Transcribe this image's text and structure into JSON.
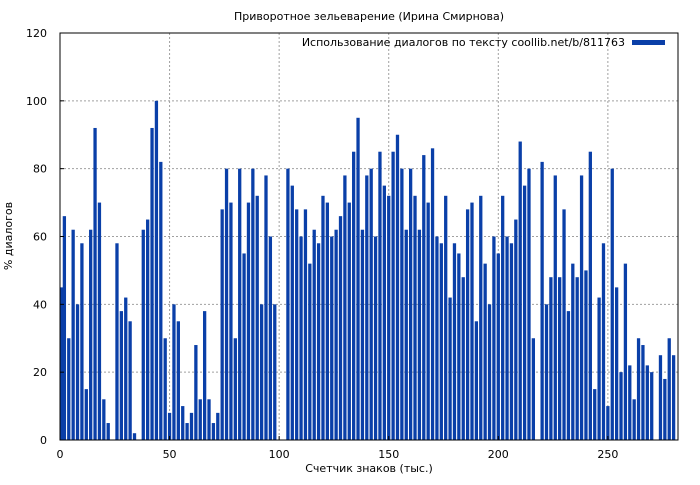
{
  "chart_data": {
    "type": "area",
    "title": "Приворотное зельеварение (Ирина Смирнова)",
    "xlabel": "Счетчик знаков (тыс.)",
    "ylabel": "% диалогов",
    "xlim": [
      0,
      282
    ],
    "ylim": [
      0,
      120
    ],
    "xticks": [
      0,
      50,
      100,
      150,
      200,
      250
    ],
    "yticks": [
      0,
      20,
      40,
      60,
      80,
      100,
      120
    ],
    "xtick_labels": [
      "0",
      "50",
      "100",
      "150",
      "200",
      "250"
    ],
    "ytick_labels": [
      "0",
      "20",
      "40",
      "60",
      "80",
      "100",
      "120"
    ],
    "grid": true,
    "legend_position": "top-right",
    "series": [
      {
        "name": "Использование диалогов по тексту coollib.net/b/811763",
        "color": "#0a3fa8",
        "x": [
          0,
          2,
          4,
          6,
          8,
          10,
          12,
          14,
          16,
          18,
          20,
          22,
          24,
          26,
          28,
          30,
          32,
          34,
          36,
          38,
          40,
          42,
          44,
          46,
          48,
          50,
          52,
          54,
          56,
          58,
          60,
          62,
          64,
          66,
          68,
          70,
          72,
          74,
          76,
          78,
          80,
          82,
          84,
          86,
          88,
          90,
          92,
          94,
          96,
          98,
          100,
          102,
          104,
          106,
          108,
          110,
          112,
          114,
          116,
          118,
          120,
          122,
          124,
          126,
          128,
          130,
          132,
          134,
          136,
          138,
          140,
          142,
          144,
          146,
          148,
          150,
          152,
          154,
          156,
          158,
          160,
          162,
          164,
          166,
          168,
          170,
          172,
          174,
          176,
          178,
          180,
          182,
          184,
          186,
          188,
          190,
          192,
          194,
          196,
          198,
          200,
          202,
          204,
          206,
          208,
          210,
          212,
          214,
          216,
          218,
          220,
          222,
          224,
          226,
          228,
          230,
          232,
          234,
          236,
          238,
          240,
          242,
          244,
          246,
          248,
          250,
          252,
          254,
          256,
          258,
          260,
          262,
          264,
          266,
          268,
          270,
          272,
          274,
          276,
          278,
          280
        ],
        "y": [
          45,
          66,
          30,
          62,
          40,
          58,
          15,
          62,
          92,
          70,
          12,
          5,
          0,
          58,
          38,
          42,
          35,
          2,
          0,
          62,
          65,
          92,
          100,
          82,
          30,
          8,
          40,
          35,
          10,
          5,
          8,
          28,
          12,
          38,
          12,
          5,
          8,
          68,
          80,
          70,
          30,
          80,
          55,
          70,
          80,
          72,
          40,
          78,
          60,
          40,
          0,
          0,
          80,
          75,
          68,
          60,
          68,
          52,
          62,
          58,
          72,
          70,
          60,
          62,
          66,
          78,
          70,
          85,
          95,
          62,
          78,
          80,
          60,
          85,
          75,
          72,
          85,
          90,
          80,
          62,
          80,
          72,
          62,
          84,
          70,
          86,
          60,
          58,
          72,
          42,
          58,
          55,
          48,
          68,
          70,
          35,
          72,
          52,
          40,
          60,
          55,
          72,
          60,
          58,
          65,
          88,
          75,
          80,
          30,
          0,
          82,
          40,
          48,
          78,
          48,
          68,
          38,
          52,
          48,
          78,
          50,
          85,
          15,
          42,
          58,
          10,
          80,
          45,
          20,
          52,
          22,
          12,
          30,
          28,
          22,
          20,
          0,
          25,
          18,
          30,
          25
        ]
      }
    ]
  }
}
